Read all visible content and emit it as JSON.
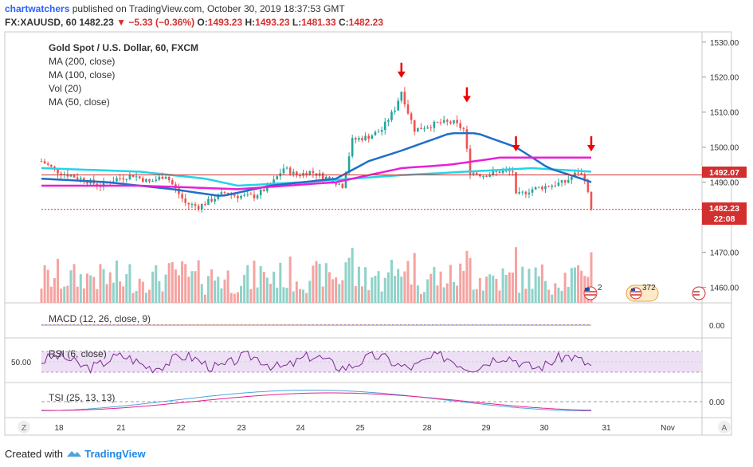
{
  "header": {
    "user": "chartwatchers",
    "published": "published on TradingView.com, October 30, 2019 18:37:53 GMT",
    "symbol": "FX:XAUUSD, 60",
    "last": "1482.23",
    "change": "−5.33 (−0.36%)",
    "o_label": "O:",
    "o": "1493.23",
    "h_label": "H:",
    "h": "1493.23",
    "l_label": "L:",
    "l": "1481.33",
    "c_label": "C:",
    "c": "1482.23"
  },
  "legend": {
    "title": "Gold Spot / U.S. Dollar, 60, FXCM",
    "ma200": "MA (200, close)",
    "ma100": "MA (100, close)",
    "vol": "Vol (20)",
    "ma50": "MA (50, close)"
  },
  "panes": {
    "macd": "MACD (12, 26, close, 9)",
    "rsi": "RSI (6, close)",
    "tsi": "TSI (25, 13, 13)",
    "macd_tick": "0.00",
    "rsi_tick": "50.00",
    "tsi_tick": "0.00"
  },
  "price_tags": {
    "ma_level": "1492.07",
    "last": "1482.23",
    "countdown": "22:08"
  },
  "events": {
    "e1_count": "2",
    "e2_count": "372"
  },
  "footer": {
    "created_with": "Created with",
    "brand": "TradingView"
  },
  "nav": {
    "zoom": "Z",
    "auto": "A"
  },
  "chart_data": {
    "type": "candlestick",
    "title": "Gold Spot / U.S. Dollar, 60, FXCM",
    "y_ticks": [
      1460,
      1470,
      1480,
      1490,
      1500,
      1510,
      1520,
      1530
    ],
    "y_range": [
      1456,
      1532
    ],
    "x_ticks": [
      "18",
      "21",
      "22",
      "23",
      "24",
      "25",
      "28",
      "29",
      "30",
      "31",
      "Nov"
    ],
    "price_path": [
      [
        0,
        1496
      ],
      [
        5,
        1493
      ],
      [
        12,
        1491
      ],
      [
        18,
        1489
      ],
      [
        23,
        1491
      ],
      [
        28,
        1492
      ],
      [
        33,
        1490
      ],
      [
        38,
        1492
      ],
      [
        41,
        1488
      ],
      [
        44,
        1484
      ],
      [
        48,
        1483
      ],
      [
        52,
        1485
      ],
      [
        56,
        1487
      ],
      [
        60,
        1486
      ],
      [
        65,
        1486
      ],
      [
        70,
        1489
      ],
      [
        74,
        1494
      ],
      [
        78,
        1492
      ],
      [
        82,
        1493
      ],
      [
        88,
        1491
      ],
      [
        92,
        1489
      ],
      [
        95,
        1502
      ],
      [
        100,
        1503
      ],
      [
        104,
        1505
      ],
      [
        108,
        1511
      ],
      [
        110,
        1516
      ],
      [
        112,
        1510
      ],
      [
        114,
        1505
      ],
      [
        118,
        1506
      ],
      [
        122,
        1507
      ],
      [
        126,
        1507
      ],
      [
        129,
        1505
      ],
      [
        131,
        1493
      ],
      [
        135,
        1492
      ],
      [
        140,
        1493
      ],
      [
        144,
        1493
      ],
      [
        145,
        1486
      ],
      [
        150,
        1488
      ],
      [
        155,
        1489
      ],
      [
        160,
        1490
      ],
      [
        164,
        1493
      ],
      [
        166,
        1491
      ],
      [
        168,
        1482.23
      ]
    ],
    "ma_magenta": [
      [
        0,
        1489
      ],
      [
        30,
        1489
      ],
      [
        60,
        1488
      ],
      [
        90,
        1490
      ],
      [
        110,
        1494
      ],
      [
        125,
        1495
      ],
      [
        140,
        1497
      ],
      [
        150,
        1497
      ],
      [
        168,
        1497
      ]
    ],
    "ma_blue": [
      [
        0,
        1491
      ],
      [
        20,
        1490
      ],
      [
        40,
        1488
      ],
      [
        55,
        1486
      ],
      [
        70,
        1489
      ],
      [
        90,
        1491
      ],
      [
        100,
        1496
      ],
      [
        110,
        1499
      ],
      [
        125,
        1504
      ],
      [
        133,
        1504
      ],
      [
        145,
        1500
      ],
      [
        155,
        1494
      ],
      [
        165,
        1491
      ],
      [
        168,
        1490
      ]
    ],
    "ma_cyan": [
      [
        0,
        1494
      ],
      [
        30,
        1493
      ],
      [
        50,
        1491
      ],
      [
        60,
        1489
      ],
      [
        80,
        1490
      ],
      [
        110,
        1492
      ],
      [
        130,
        1493
      ],
      [
        150,
        1494
      ],
      [
        168,
        1493
      ]
    ],
    "horizontal_levels": [
      1492.07,
      1482.23
    ],
    "arrows_at": [
      [
        110,
        1520
      ],
      [
        130,
        1513
      ],
      [
        145,
        1499
      ],
      [
        168,
        1499
      ]
    ],
    "rsi_band": [
      30,
      70
    ],
    "colors": {
      "up": "#26a69a",
      "down": "#ef5350",
      "ma_magenta": "#e91ed7",
      "ma_blue": "#1e6fc8",
      "ma_cyan": "#23d4e6",
      "level": "#d32f2f"
    }
  }
}
